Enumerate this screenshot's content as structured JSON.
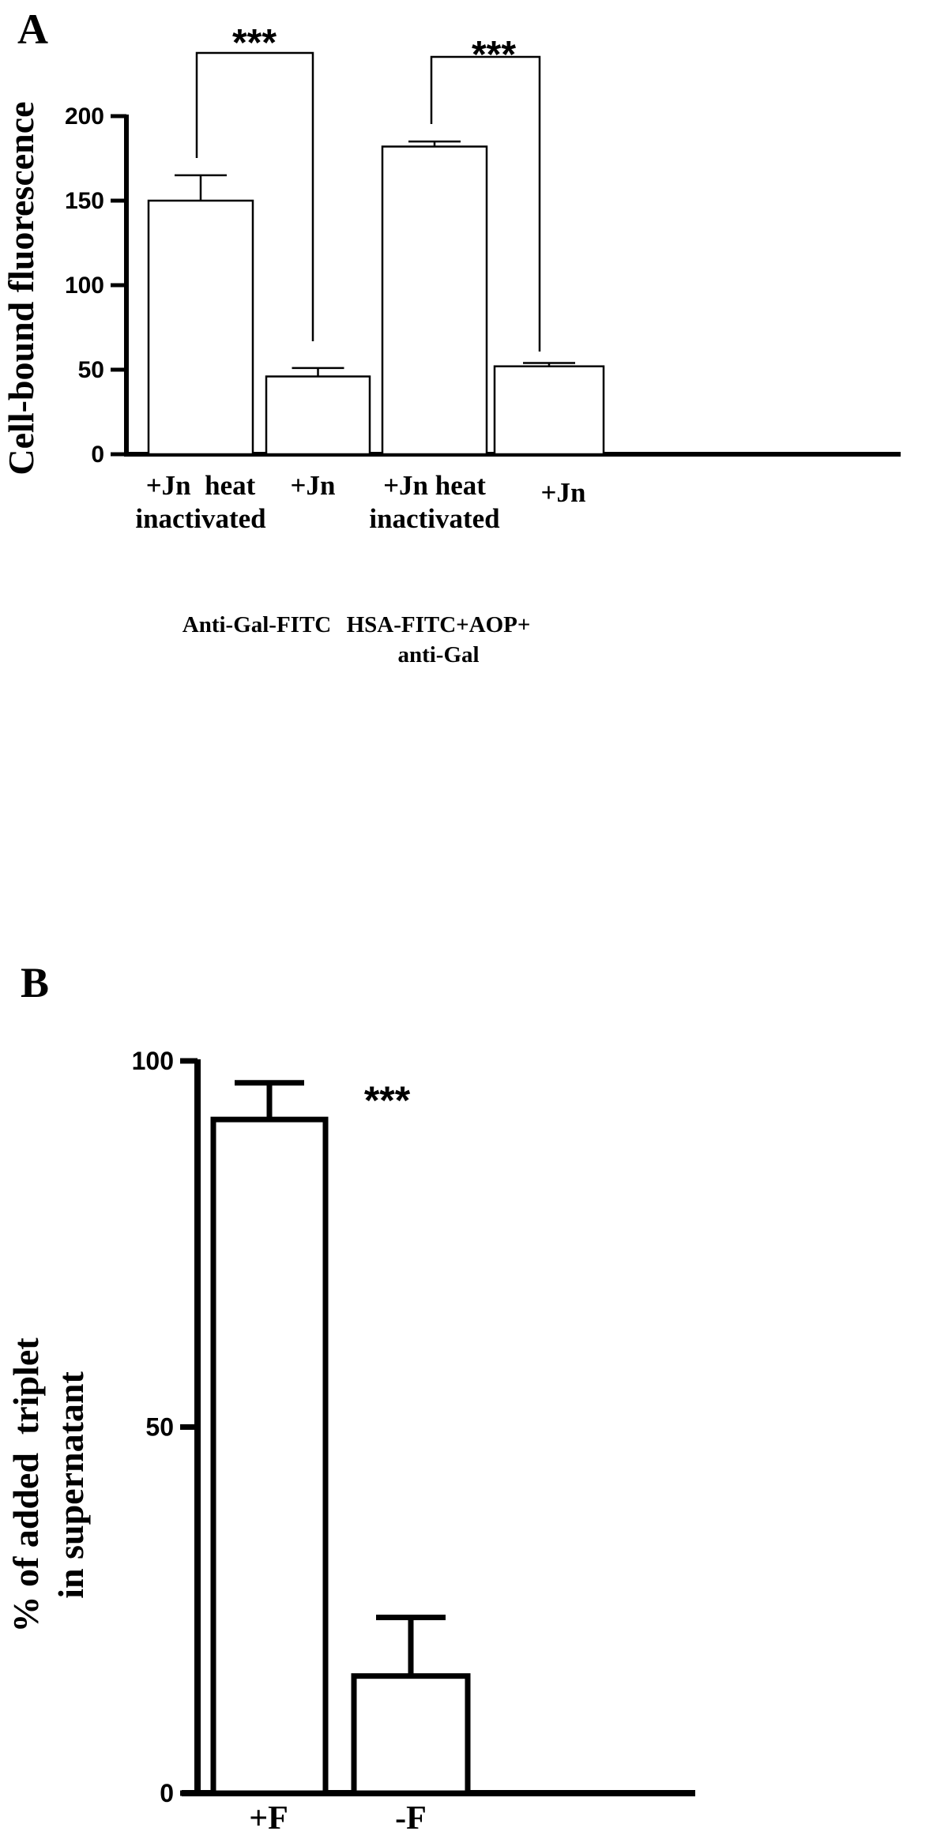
{
  "panels": [
    {
      "label": "A",
      "chart_data": {
        "type": "bar",
        "ylabel": "Cell-bound fluorescence",
        "ylim": [
          0,
          200
        ],
        "yticks": [
          0,
          50,
          100,
          150,
          200
        ],
        "categories": [
          [
            "+Jn  heat",
            "inactivated"
          ],
          [
            "+Jn"
          ],
          [
            "+Jn heat",
            "inactivated"
          ],
          [
            "+Jn"
          ]
        ],
        "values": [
          150,
          46,
          182,
          52
        ],
        "errors": [
          15,
          5,
          3,
          2
        ],
        "groups": [
          {
            "lines": [
              "Anti-Gal-FITC"
            ]
          },
          {
            "lines": [
              "HSA-FITC+AOP+",
              "anti-Gal"
            ]
          }
        ],
        "significance": [
          {
            "between": [
              0,
              1
            ],
            "label": "***"
          },
          {
            "between": [
              2,
              3
            ],
            "label": "***"
          }
        ],
        "grid": false
      }
    },
    {
      "label": "B",
      "chart_data": {
        "type": "bar",
        "ylabel": [
          "% of added  triplet",
          "in supernatant"
        ],
        "ylim": [
          0,
          100
        ],
        "yticks": [
          0,
          50,
          100
        ],
        "categories": [
          [
            "+F"
          ],
          [
            "-F"
          ]
        ],
        "values": [
          92,
          16
        ],
        "errors": [
          5,
          8
        ],
        "significance": [
          {
            "label": "***"
          }
        ],
        "grid": false
      }
    }
  ]
}
